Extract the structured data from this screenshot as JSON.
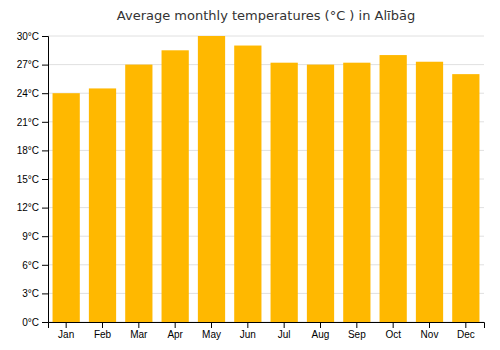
{
  "chart_data": {
    "type": "bar",
    "title": "Average monthly temperatures (°C ) in Alībāg",
    "categories": [
      "Jan",
      "Feb",
      "Mar",
      "Apr",
      "May",
      "Jun",
      "Jul",
      "Aug",
      "Sep",
      "Oct",
      "Nov",
      "Dec"
    ],
    "values": [
      24.0,
      24.5,
      27.0,
      28.5,
      30.0,
      29.0,
      27.2,
      27.0,
      27.2,
      28.0,
      27.3,
      26.0
    ],
    "color": "#FFB800",
    "ylim": [
      0,
      30
    ],
    "yticks": [
      {
        "value": 0,
        "label": "0°C"
      },
      {
        "value": 3,
        "label": "3°C"
      },
      {
        "value": 6,
        "label": "6°C"
      },
      {
        "value": 9,
        "label": "9°C"
      },
      {
        "value": 12,
        "label": "12°C"
      },
      {
        "value": 15,
        "label": "15°C"
      },
      {
        "value": 18,
        "label": "18°C"
      },
      {
        "value": 21,
        "label": "21°C"
      },
      {
        "value": 24,
        "label": "24°C"
      },
      {
        "value": 27,
        "label": "27°C"
      },
      {
        "value": 30,
        "label": "30°C"
      }
    ],
    "grid": true
  }
}
